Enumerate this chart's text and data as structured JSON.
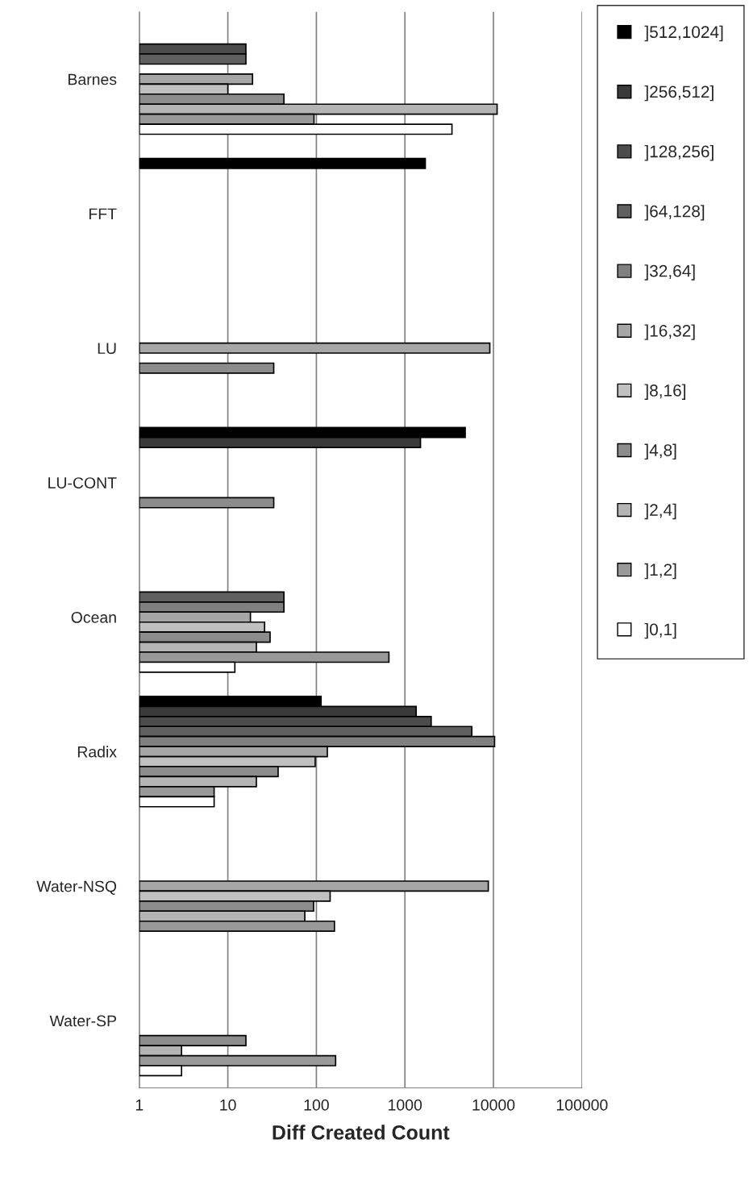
{
  "chart_data": {
    "type": "bar",
    "orientation": "horizontal",
    "xlabel": "Diff Created Count",
    "log": "x",
    "xlim": [
      1,
      100000
    ],
    "xticks": [
      1,
      10,
      100,
      1000,
      10000,
      100000
    ],
    "grid": "x",
    "legend": "right",
    "categories": [
      "Barnes",
      "FFT",
      "LU",
      "LU-CONT",
      "Ocean",
      "Radix",
      "Water-NSQ",
      "Water-SP"
    ],
    "series": [
      {
        "name": "]512,1024]",
        "color": "#000000",
        "values": [
          null,
          1700,
          null,
          4800,
          null,
          113,
          null,
          null
        ]
      },
      {
        "name": "]256,512]",
        "color": "#3a3a3a",
        "values": [
          null,
          null,
          null,
          1500,
          null,
          1340,
          null,
          null
        ]
      },
      {
        "name": "]128,256]",
        "color": "#4c4c4c",
        "values": [
          16,
          null,
          null,
          null,
          null,
          1980,
          null,
          null
        ]
      },
      {
        "name": "]64,128]",
        "color": "#606060",
        "values": [
          16,
          null,
          null,
          null,
          43,
          5700,
          null,
          null
        ]
      },
      {
        "name": "]32,64]",
        "color": "#808080",
        "values": [
          null,
          null,
          null,
          null,
          43,
          10300,
          null,
          null
        ]
      },
      {
        "name": "]16,32]",
        "color": "#a6a6a6",
        "values": [
          19,
          null,
          9100,
          null,
          18,
          133,
          8750,
          null
        ]
      },
      {
        "name": "]8,16]",
        "color": "#c0c0c0",
        "values": [
          10,
          null,
          null,
          null,
          26,
          97,
          143,
          null
        ]
      },
      {
        "name": "]4,8]",
        "color": "#8c8c8c",
        "values": [
          43,
          null,
          33,
          33,
          30,
          37,
          93,
          16
        ]
      },
      {
        "name": "]2,4]",
        "color": "#b4b4b4",
        "values": [
          11000,
          null,
          null,
          null,
          21,
          21,
          74,
          3
        ]
      },
      {
        "name": "]1,2]",
        "color": "#999999",
        "values": [
          94,
          null,
          null,
          null,
          660,
          7,
          160,
          165
        ]
      },
      {
        "name": "]0,1]",
        "color": "#ffffff",
        "values": [
          3400,
          null,
          null,
          null,
          12,
          7,
          null,
          3
        ]
      }
    ]
  }
}
